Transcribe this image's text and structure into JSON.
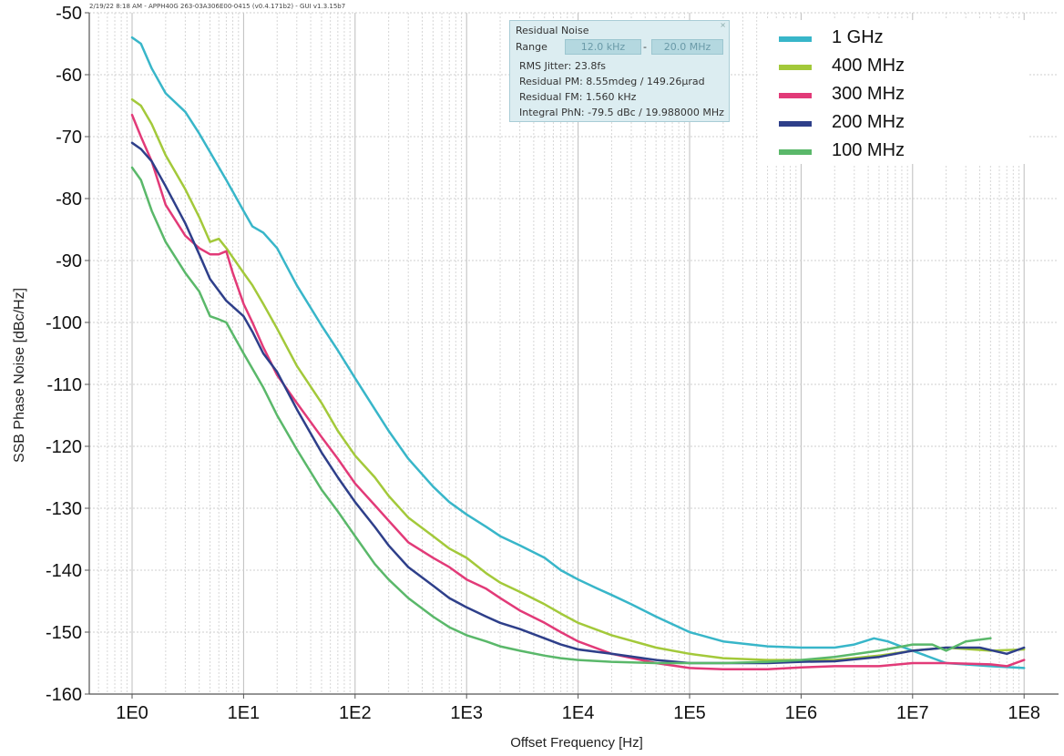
{
  "header_text": "2/19/22 8:18 AM - APPH40G 263-03A306E00-0415 (v0.4.171b2) - GUI v1.3.15b7",
  "info_box": {
    "title": "Residual Noise",
    "range_label": "Range",
    "range_from": "12.0 kHz",
    "range_dash": "-",
    "range_to": "20.0 MHz",
    "close_icon": "×",
    "rows": [
      "RMS Jitter: 23.8fs",
      "Residual PM: 8.55mdeg / 149.26µrad",
      "Residual FM: 1.560 kHz",
      "Integral PhN: -79.5 dBc / 19.988000 MHz"
    ]
  },
  "chart_data": {
    "type": "line",
    "xlabel": "Offset Frequency [Hz]",
    "ylabel": "SSB Phase Noise [dBc/Hz]",
    "xscale": "log",
    "xlim": [
      1,
      100000000
    ],
    "ylim": [
      -160,
      -50
    ],
    "xticks": [
      1,
      10,
      100,
      1000,
      10000,
      100000,
      1000000,
      10000000,
      100000000
    ],
    "xtick_labels": [
      "1E0",
      "1E1",
      "1E2",
      "1E3",
      "1E4",
      "1E5",
      "1E6",
      "1E7",
      "1E8"
    ],
    "yticks": [
      -160,
      -150,
      -140,
      -130,
      -120,
      -110,
      -100,
      -90,
      -80,
      -70,
      -60,
      -50
    ],
    "grid": true,
    "legend_position": "top-right",
    "series": [
      {
        "name": "1 GHz",
        "color": "#38b6c9",
        "x": [
          1,
          1.2,
          1.5,
          2,
          3,
          4,
          5,
          7,
          10,
          12,
          15,
          20,
          30,
          50,
          70,
          100,
          150,
          200,
          300,
          500,
          700,
          1000,
          1500,
          2000,
          3000,
          5000,
          7000,
          10000,
          15000,
          20000,
          30000,
          50000,
          100000,
          200000,
          500000,
          1000000,
          2000000,
          3000000,
          4500000,
          6000000,
          10000000,
          20000000,
          50000000,
          100000000
        ],
        "y": [
          -54,
          -55,
          -59,
          -63,
          -66,
          -69.5,
          -72.5,
          -77,
          -82,
          -84.5,
          -85.5,
          -88,
          -94,
          -100.5,
          -104.5,
          -109,
          -114,
          -117.5,
          -122,
          -126.5,
          -129,
          -131,
          -133,
          -134.5,
          -136,
          -138,
          -140,
          -141.5,
          -143,
          -144,
          -145.5,
          -147.5,
          -150,
          -151.5,
          -152.3,
          -152.5,
          -152.5,
          -152,
          -151,
          -151.5,
          -153,
          -155,
          -155.5,
          -155.8
        ]
      },
      {
        "name": "400 MHz",
        "color": "#a3c93a",
        "x": [
          1,
          1.2,
          1.5,
          2,
          3,
          4,
          5,
          6,
          7,
          10,
          12,
          15,
          20,
          30,
          50,
          70,
          100,
          150,
          200,
          300,
          500,
          700,
          1000,
          1500,
          2000,
          3000,
          5000,
          7000,
          10000,
          20000,
          50000,
          100000,
          200000,
          500000,
          1000000,
          2000000,
          5000000,
          10000000,
          20000000,
          50000000,
          100000000
        ],
        "y": [
          -64,
          -65,
          -68,
          -73,
          -78.5,
          -83,
          -87,
          -86.5,
          -88,
          -92,
          -94,
          -97,
          -101,
          -107,
          -113,
          -117.5,
          -121.5,
          -125,
          -128,
          -131.5,
          -134.5,
          -136.5,
          -138,
          -140.5,
          -142,
          -143.5,
          -145.5,
          -147,
          -148.5,
          -150.5,
          -152.5,
          -153.5,
          -154.2,
          -154.5,
          -154.5,
          -154.5,
          -153.8,
          -153,
          -152.5,
          -153,
          -152.8
        ]
      },
      {
        "name": "300 MHz",
        "color": "#e23a78",
        "x": [
          1,
          1.2,
          1.5,
          2,
          3,
          4,
          5,
          6,
          7,
          8,
          10,
          12,
          15,
          20,
          30,
          50,
          70,
          100,
          150,
          200,
          300,
          500,
          700,
          1000,
          1500,
          2000,
          3000,
          5000,
          7000,
          10000,
          20000,
          50000,
          100000,
          200000,
          500000,
          1000000,
          2000000,
          5000000,
          10000000,
          20000000,
          50000000,
          70000000,
          100000000
        ],
        "y": [
          -66.5,
          -70,
          -74,
          -81,
          -86,
          -88,
          -89,
          -89,
          -88.5,
          -92,
          -97,
          -100,
          -104,
          -108.5,
          -113,
          -118.5,
          -122,
          -126,
          -129.5,
          -132,
          -135.5,
          -138,
          -139.5,
          -141.5,
          -143,
          -144.5,
          -146.5,
          -148.5,
          -150,
          -151.5,
          -153.5,
          -155,
          -155.8,
          -156,
          -156,
          -155.7,
          -155.5,
          -155.5,
          -155,
          -155,
          -155.2,
          -155.5,
          -154.5
        ]
      },
      {
        "name": "200 MHz",
        "color": "#2e3f8a",
        "x": [
          1,
          1.2,
          1.5,
          2,
          3,
          4,
          5,
          7,
          10,
          12,
          15,
          20,
          30,
          50,
          70,
          100,
          150,
          200,
          300,
          500,
          700,
          1000,
          1500,
          2000,
          3000,
          5000,
          7000,
          10000,
          20000,
          50000,
          100000,
          200000,
          500000,
          1000000,
          2000000,
          5000000,
          10000000,
          20000000,
          40000000,
          70000000,
          100000000
        ],
        "y": [
          -71,
          -72,
          -74,
          -78,
          -84,
          -89,
          -93,
          -96.5,
          -99,
          -101.5,
          -105,
          -108,
          -114,
          -121,
          -125,
          -129,
          -133,
          -136,
          -139.5,
          -142.5,
          -144.5,
          -146,
          -147.5,
          -148.5,
          -149.5,
          -151,
          -152,
          -152.8,
          -153.5,
          -154.5,
          -155,
          -155,
          -155,
          -154.8,
          -154.7,
          -154,
          -153,
          -152.5,
          -152.5,
          -153.5,
          -152.5
        ]
      },
      {
        "name": "100 MHz",
        "color": "#5ab86a",
        "x": [
          1,
          1.2,
          1.5,
          2,
          3,
          4,
          5,
          6,
          7,
          10,
          15,
          20,
          30,
          50,
          70,
          100,
          150,
          200,
          300,
          500,
          700,
          1000,
          1500,
          2000,
          3000,
          5000,
          7000,
          10000,
          20000,
          50000,
          100000,
          200000,
          500000,
          1000000,
          2000000,
          5000000,
          10000000,
          15000000,
          20000000,
          30000000,
          50000000
        ],
        "y": [
          -75,
          -77,
          -82,
          -87,
          -92,
          -95,
          -99,
          -99.5,
          -100,
          -105,
          -110.5,
          -115,
          -120.5,
          -127,
          -130.5,
          -134.5,
          -139,
          -141.5,
          -144.5,
          -147.5,
          -149.2,
          -150.5,
          -151.5,
          -152.3,
          -153,
          -153.8,
          -154.2,
          -154.5,
          -154.8,
          -155,
          -155,
          -155,
          -154.8,
          -154.5,
          -154,
          -153,
          -152,
          -152,
          -153,
          -151.5,
          -151
        ]
      }
    ]
  }
}
